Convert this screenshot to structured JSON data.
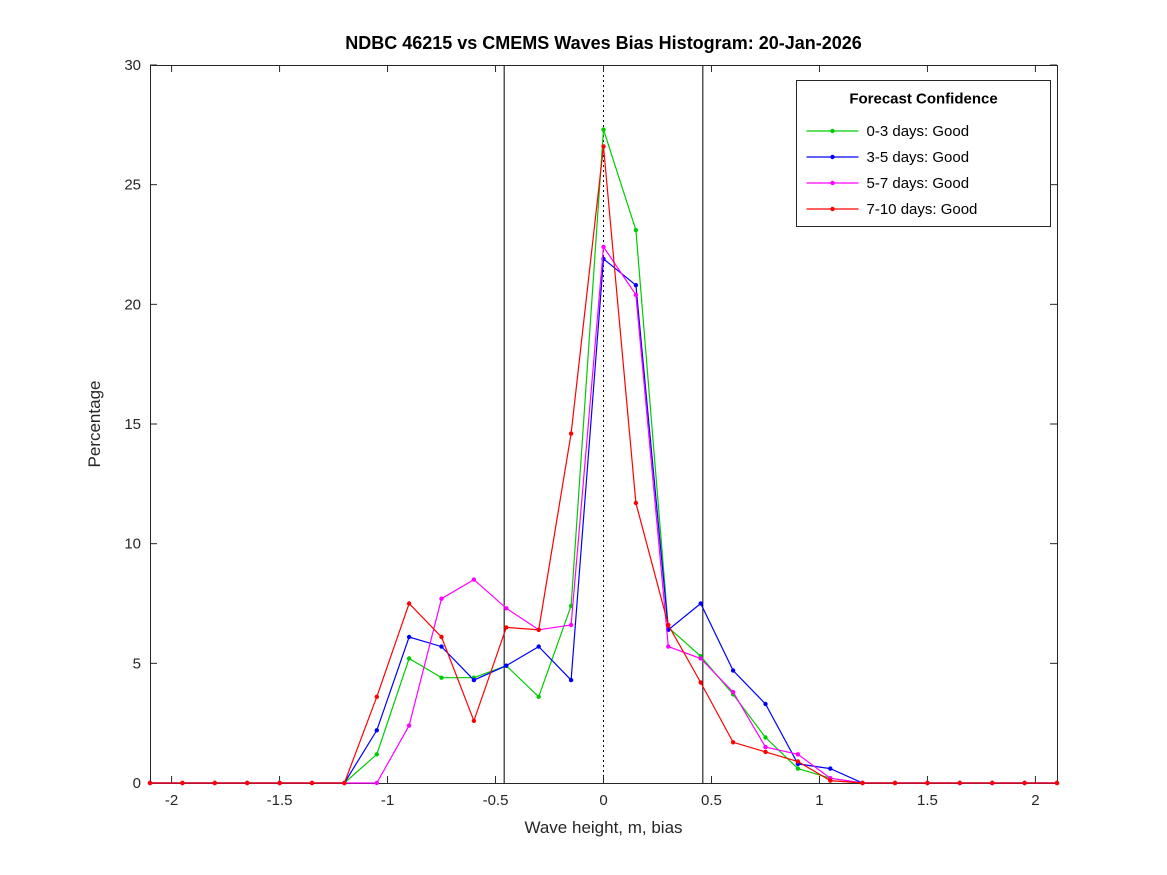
{
  "chart_data": {
    "type": "line",
    "title": "NDBC 46215 vs CMEMS Waves Bias Histogram: 20-Jan-2026",
    "xlabel": "Wave height, m, bias",
    "ylabel": "Percentage",
    "xlim": [
      -2.1,
      2.1
    ],
    "ylim": [
      0,
      30
    ],
    "xticks": [
      -2,
      -1.5,
      -1,
      -0.5,
      0,
      0.5,
      1,
      1.5,
      2
    ],
    "xtick_labels": [
      "-2",
      "-1.5",
      "-1",
      "-0.5",
      "0",
      "0.5",
      "1",
      "1.5",
      "2"
    ],
    "yticks": [
      0,
      5,
      10,
      15,
      20,
      25,
      30
    ],
    "ytick_labels": [
      "0",
      "5",
      "10",
      "15",
      "20",
      "25",
      "30"
    ],
    "grid": false,
    "marker_style": "point",
    "legend": {
      "title": "Forecast Confidence",
      "position": "top-right"
    },
    "reference_lines": [
      {
        "x": -0.46,
        "style": "solid",
        "color": "#000000"
      },
      {
        "x": 0,
        "style": "dotted",
        "color": "#000000"
      },
      {
        "x": 0.46,
        "style": "solid",
        "color": "#000000"
      }
    ],
    "x": [
      -2.1,
      -1.95,
      -1.8,
      -1.65,
      -1.5,
      -1.35,
      -1.2,
      -1.05,
      -0.9,
      -0.75,
      -0.6,
      -0.45,
      -0.3,
      -0.15,
      0,
      0.15,
      0.3,
      0.45,
      0.6,
      0.75,
      0.9,
      1.05,
      1.2,
      1.35,
      1.5,
      1.65,
      1.8,
      1.95,
      2.1
    ],
    "series": [
      {
        "name": "0-3 days: Good",
        "color": "#00CC00",
        "values": [
          0,
          0,
          0,
          0,
          0,
          0,
          0,
          1.2,
          5.2,
          4.4,
          4.4,
          4.9,
          3.6,
          7.4,
          27.3,
          23.1,
          6.5,
          5.3,
          3.7,
          1.9,
          0.6,
          0.2,
          0,
          0,
          0,
          0,
          0,
          0,
          0
        ]
      },
      {
        "name": "3-5 days: Good",
        "color": "#0000FF",
        "values": [
          0,
          0,
          0,
          0,
          0,
          0,
          0,
          2.2,
          6.1,
          5.7,
          4.3,
          4.9,
          5.7,
          4.3,
          21.9,
          20.8,
          6.4,
          7.5,
          4.7,
          3.3,
          0.8,
          0.6,
          0,
          0,
          0,
          0,
          0,
          0,
          0
        ]
      },
      {
        "name": "5-7 days: Good",
        "color": "#FF00FF",
        "values": [
          0,
          0,
          0,
          0,
          0,
          0,
          0,
          0,
          2.4,
          7.7,
          8.5,
          7.3,
          6.4,
          6.6,
          22.4,
          20.4,
          5.7,
          5.2,
          3.8,
          1.5,
          1.2,
          0.2,
          0,
          0,
          0,
          0,
          0,
          0,
          0
        ]
      },
      {
        "name": "7-10 days: Good",
        "color": "#FF0000",
        "values": [
          0,
          0,
          0,
          0,
          0,
          0,
          0,
          3.6,
          7.5,
          6.1,
          2.6,
          6.5,
          6.4,
          14.6,
          26.6,
          11.7,
          6.6,
          4.2,
          1.7,
          1.3,
          0.9,
          0.1,
          0,
          0,
          0,
          0,
          0,
          0,
          0
        ]
      }
    ]
  }
}
